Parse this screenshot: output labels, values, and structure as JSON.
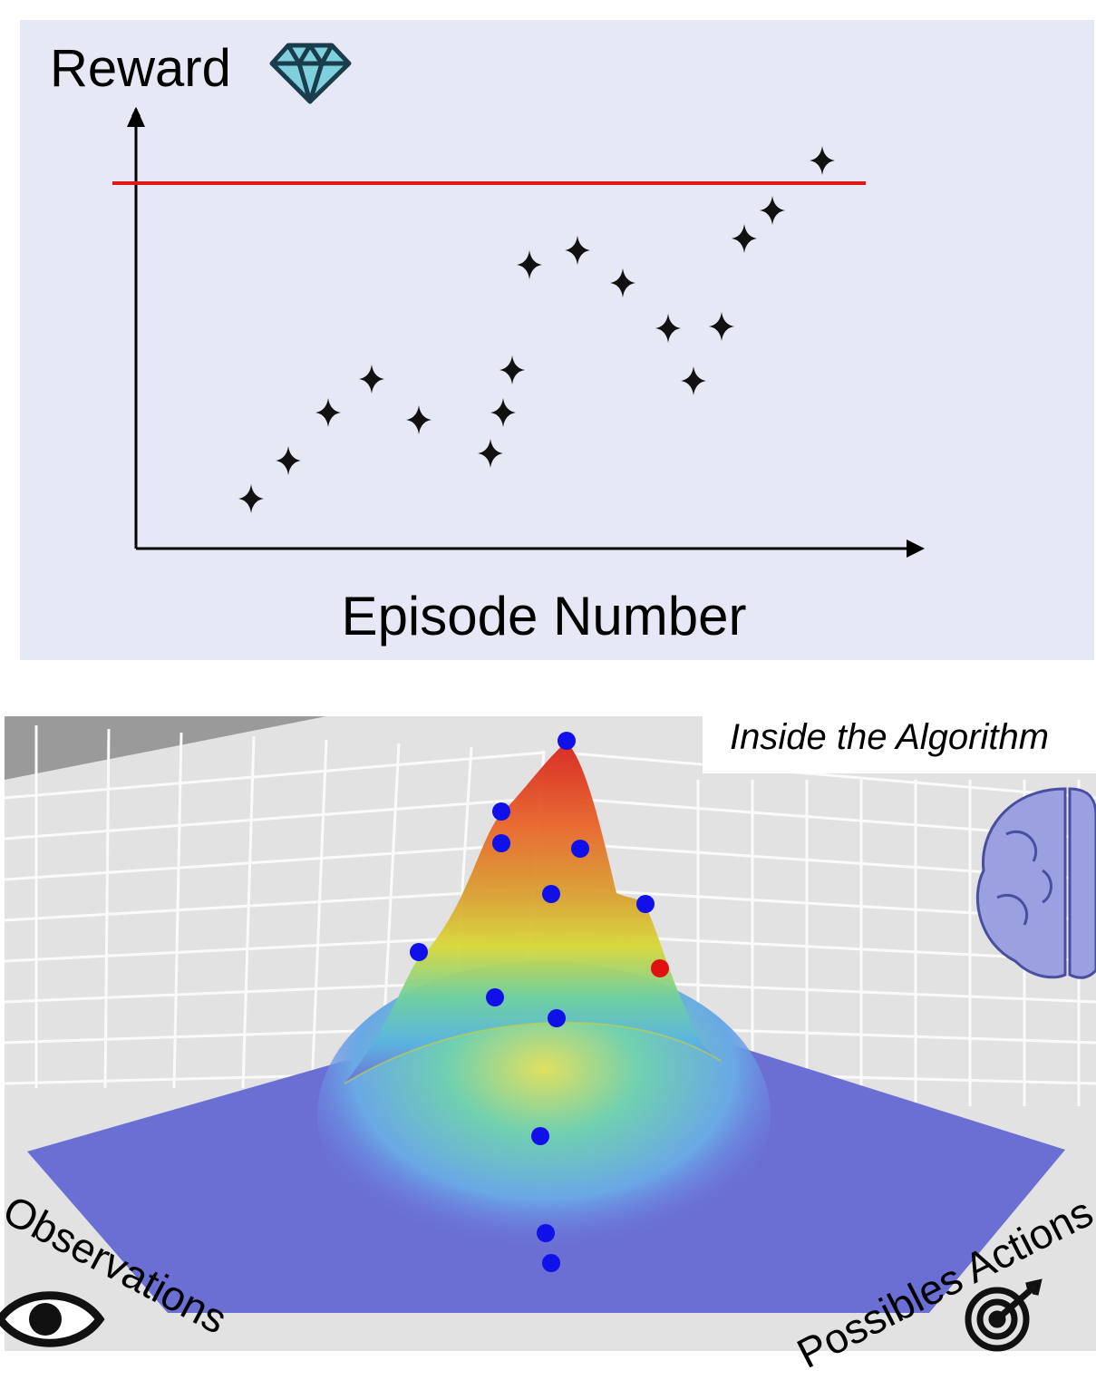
{
  "reward_plot": {
    "y_label": "Reward",
    "x_label": "Episode Number"
  },
  "algorithm_panel": {
    "title": "Inside the Algorithm",
    "observations_label": "Observations",
    "actions_label": "Possibles Actions"
  }
}
